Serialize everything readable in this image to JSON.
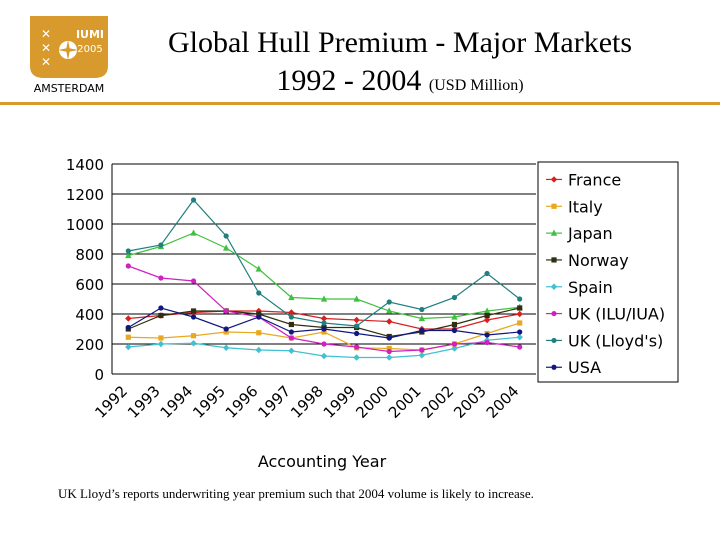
{
  "header": {
    "title_line1": "Global Hull Premium - Major Markets",
    "title_line2_main": "1992 - 2004",
    "title_line2_unit": "(USD Million)"
  },
  "logo": {
    "text_top": "IUMI",
    "text_year": "2005",
    "text_bottom": "AMSTERDAM",
    "color": "#d89a2c"
  },
  "footnote": "UK Lloyd’s reports underwriting year premium such that 2004 volume is likely to increase.",
  "chart_data": {
    "type": "line",
    "xlabel": "Accounting Year",
    "ylabel": "",
    "ylim": [
      0,
      1400
    ],
    "yticks": [
      "0",
      "200",
      "400",
      "600",
      "800",
      "1000",
      "1200",
      "1400"
    ],
    "categories": [
      "1992",
      "1993",
      "1994",
      "1995",
      "1996",
      "1997",
      "1998",
      "1999",
      "2000",
      "2001",
      "2002",
      "2003",
      "2004"
    ],
    "grid": "horizontal",
    "legend_position": "right",
    "series": [
      {
        "name": "France",
        "color": "#d92020",
        "marker": "diamond",
        "values": [
          370,
          390,
          410,
          420,
          420,
          410,
          370,
          360,
          350,
          300,
          300,
          360,
          400
        ]
      },
      {
        "name": "Italy",
        "color": "#e8a820",
        "marker": "square",
        "values": [
          245,
          240,
          255,
          280,
          275,
          240,
          280,
          175,
          170,
          160,
          200,
          270,
          340
        ]
      },
      {
        "name": "Japan",
        "color": "#40c040",
        "marker": "triangle",
        "values": [
          790,
          850,
          940,
          840,
          700,
          510,
          500,
          500,
          420,
          370,
          380,
          420,
          445
        ]
      },
      {
        "name": "Norway",
        "color": "#303010",
        "marker": "square",
        "values": [
          300,
          390,
          420,
          420,
          400,
          330,
          310,
          310,
          250,
          280,
          330,
          390,
          440
        ]
      },
      {
        "name": "Spain",
        "color": "#40c0d0",
        "marker": "diamond",
        "values": [
          180,
          200,
          205,
          175,
          160,
          155,
          120,
          110,
          110,
          125,
          170,
          225,
          245
        ]
      },
      {
        "name": "UK (ILU/IUA)",
        "color": "#d020c0",
        "marker": "circle",
        "values": [
          720,
          640,
          620,
          420,
          380,
          240,
          200,
          180,
          150,
          160,
          200,
          210,
          180
        ]
      },
      {
        "name": "UK (Lloyd's)",
        "color": "#208080",
        "marker": "circle",
        "values": [
          820,
          860,
          1160,
          920,
          540,
          380,
          340,
          320,
          480,
          430,
          510,
          670,
          500
        ]
      },
      {
        "name": "USA",
        "color": "#101880",
        "marker": "circle",
        "values": [
          310,
          440,
          380,
          300,
          380,
          280,
          300,
          270,
          240,
          290,
          290,
          260,
          280
        ]
      }
    ]
  }
}
